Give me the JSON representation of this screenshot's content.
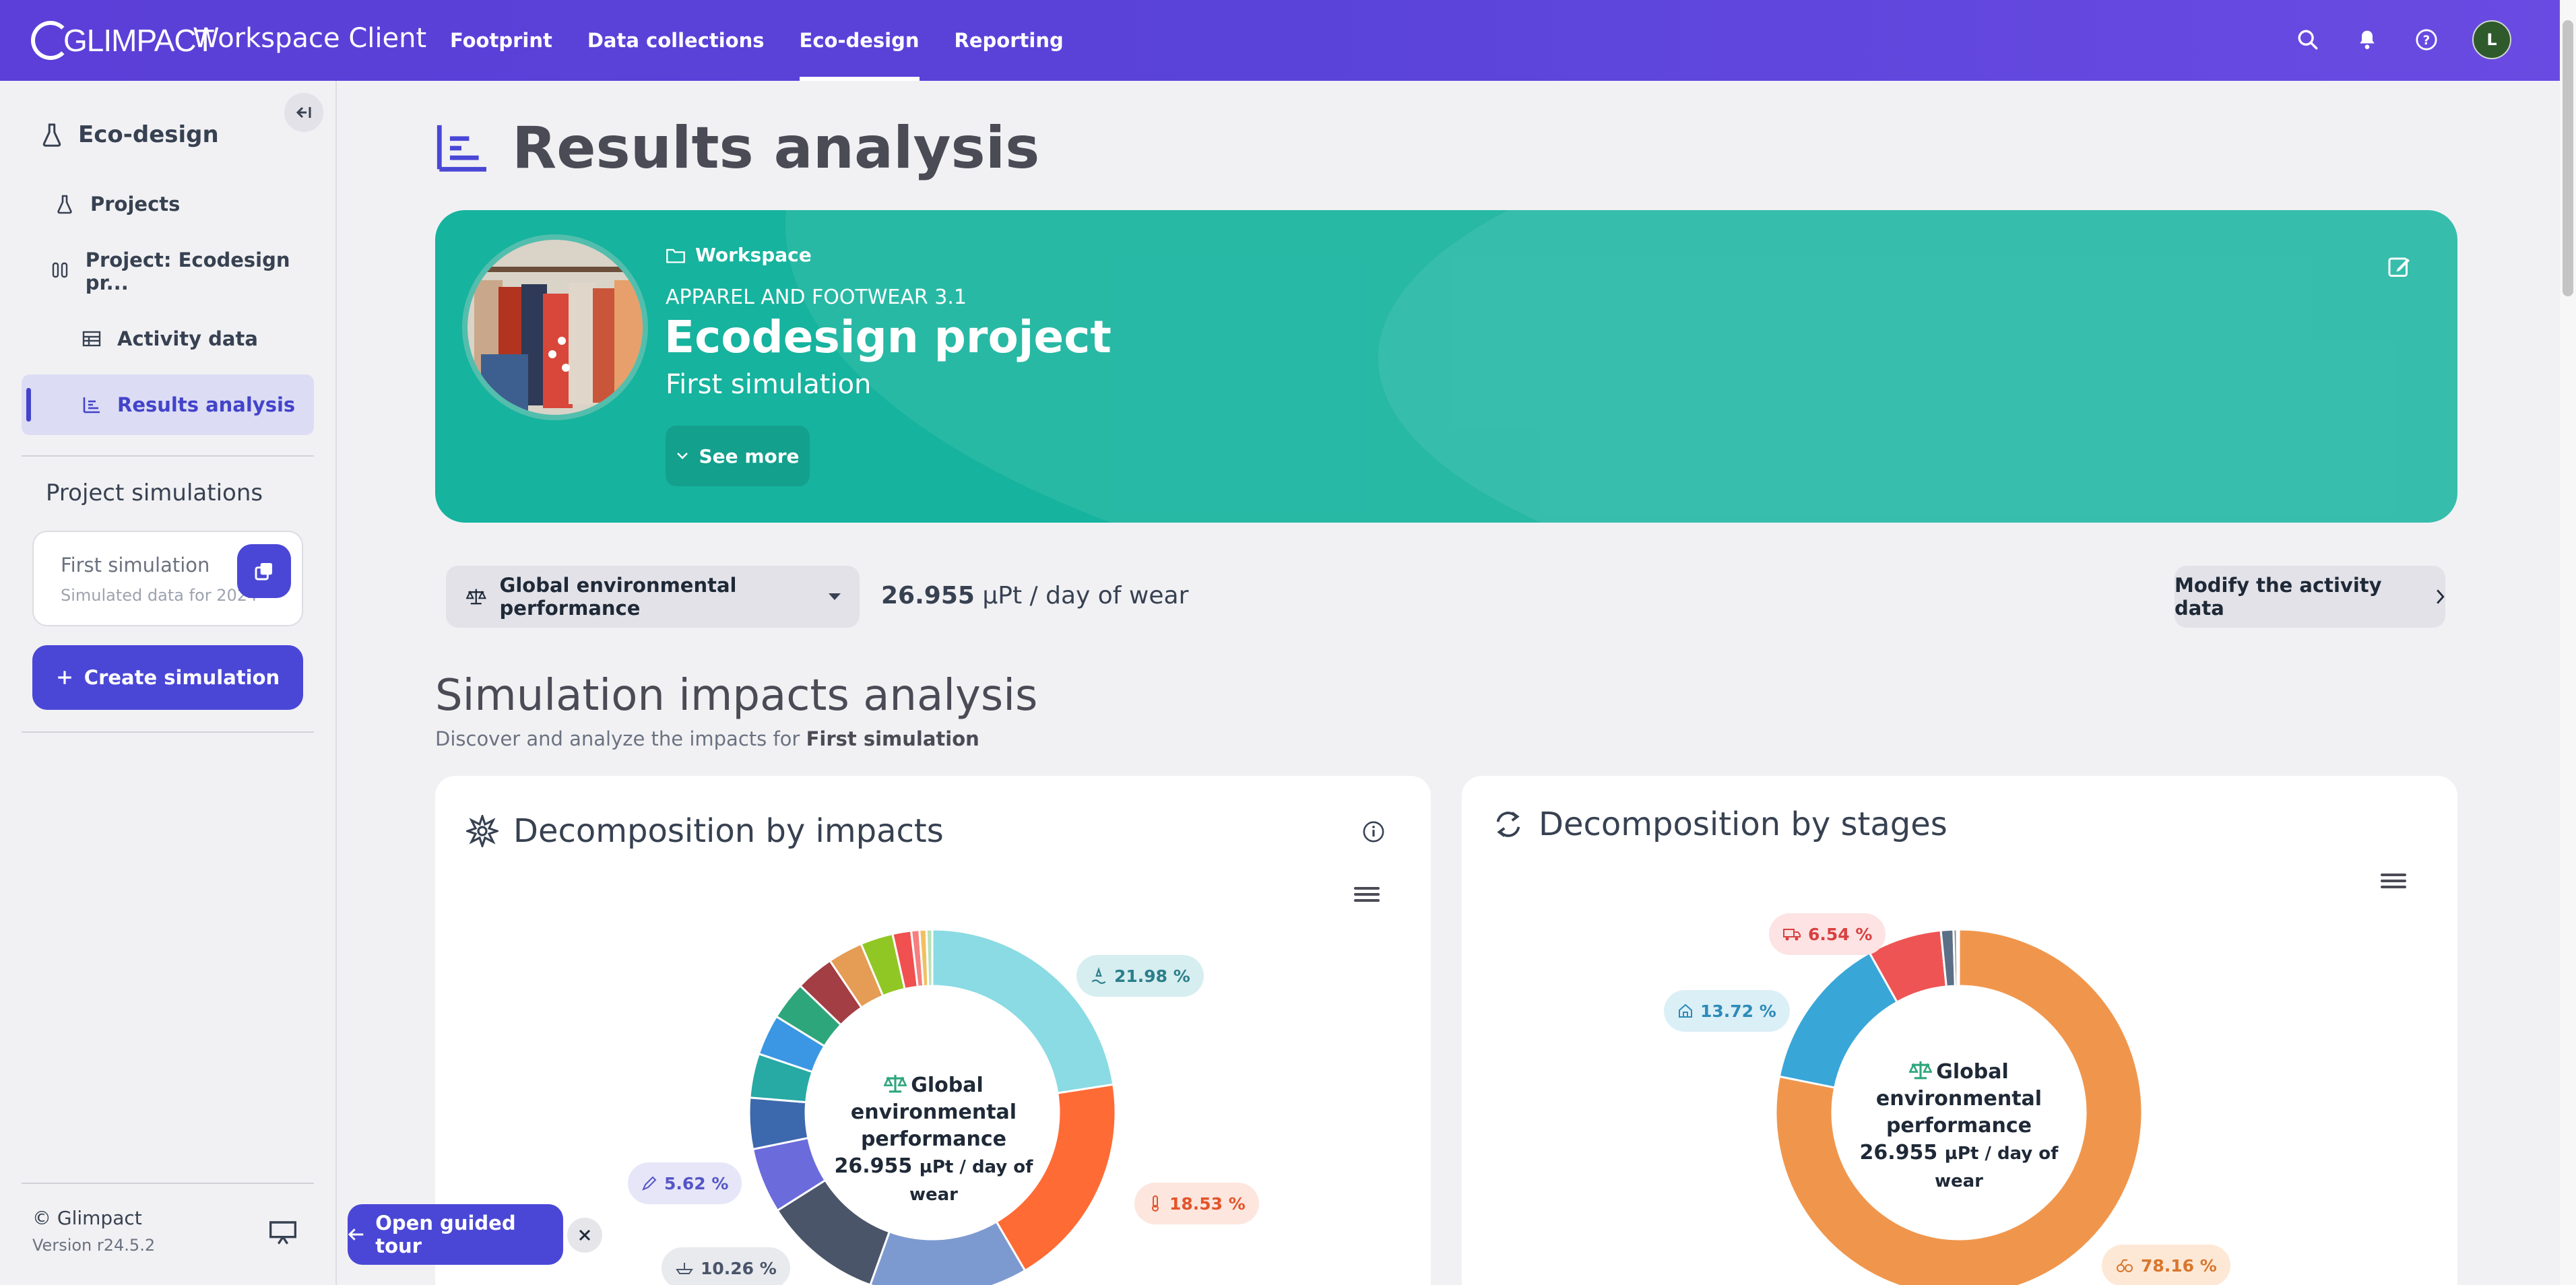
{
  "topbar": {
    "logo": "GLIMPACT",
    "app_title": "Workspace Client",
    "nav": [
      "Footprint",
      "Data collections",
      "Eco-design",
      "Reporting"
    ],
    "avatar_initial": "L"
  },
  "sidebar": {
    "section": "Eco-design",
    "items": [
      {
        "label": "Projects"
      },
      {
        "label": "Project: Ecodesign pr..."
      },
      {
        "label": "Activity data"
      },
      {
        "label": "Results analysis"
      }
    ],
    "simulations_title": "Project simulations",
    "simulation": {
      "name": "First simulation",
      "subtitle": "Simulated data for 2024"
    },
    "create_label": "Create simulation",
    "copyright": "© Glimpact",
    "version": "Version r24.5.2"
  },
  "page": {
    "title": "Results analysis"
  },
  "banner": {
    "crumb": "Workspace",
    "category": "APPAREL AND FOOTWEAR 3.1",
    "title": "Ecodesign project",
    "subtitle": "First simulation",
    "see_more": "See more",
    "color": "#16b39e"
  },
  "controls": {
    "indicator": "Global environmental performance",
    "value": "26.955",
    "unit": "µPt / day of wear",
    "modify_label": "Modify the activity data"
  },
  "analysis": {
    "title": "Simulation impacts analysis",
    "subtitle_prefix": "Discover and analyze the impacts for",
    "subtitle_bold": "First simulation"
  },
  "cards": {
    "impacts_title": "Decomposition by impacts",
    "stages_title": "Decomposition by stages",
    "center_line1": "Global",
    "center_line2": "environmental",
    "center_line3": "performance",
    "center_value": "26.955",
    "center_unit": "µPt / day of wear"
  },
  "chart_data": [
    {
      "type": "pie",
      "title": "Decomposition by impacts",
      "slices": [
        {
          "value": 21.98,
          "label": "21.98 %",
          "color": "#8adbe3"
        },
        {
          "value": 18.53,
          "label": "18.53 %",
          "color": "#ff6b35"
        },
        {
          "value": 13.6,
          "color": "#7d9ad0"
        },
        {
          "value": 10.26,
          "label": "10.26 %",
          "color": "#4b5569"
        },
        {
          "value": 5.62,
          "label": "5.62 %",
          "color": "#6b6bdc"
        },
        {
          "value": 4.4,
          "color": "#3c68ad"
        },
        {
          "value": 3.8,
          "color": "#27a9a4"
        },
        {
          "value": 3.5,
          "color": "#3b97e3"
        },
        {
          "value": 3.3,
          "color": "#2ea67c"
        },
        {
          "value": 3.3,
          "color": "#a33e44"
        },
        {
          "value": 3.0,
          "color": "#e59c55"
        },
        {
          "value": 2.8,
          "color": "#91c724"
        },
        {
          "value": 1.6,
          "color": "#f05050"
        },
        {
          "value": 0.7,
          "color": "#f57f7f"
        },
        {
          "value": 0.6,
          "color": "#f1c060"
        },
        {
          "value": 0.5,
          "color": "#b7e1b7"
        }
      ]
    },
    {
      "type": "pie",
      "title": "Decomposition by stages",
      "slices": [
        {
          "value": 78.16,
          "label": "78.16 %",
          "color": "#f0964c"
        },
        {
          "value": 13.72,
          "label": "13.72 %",
          "color": "#39a6d8"
        },
        {
          "value": 6.54,
          "label": "6.54 %",
          "color": "#ef5454"
        },
        {
          "value": 1.1,
          "color": "#5b6f86"
        },
        {
          "value": 0.3,
          "color": "#8a8a8a"
        },
        {
          "value": 0.18,
          "color": "#33c06a"
        }
      ]
    }
  ]
}
